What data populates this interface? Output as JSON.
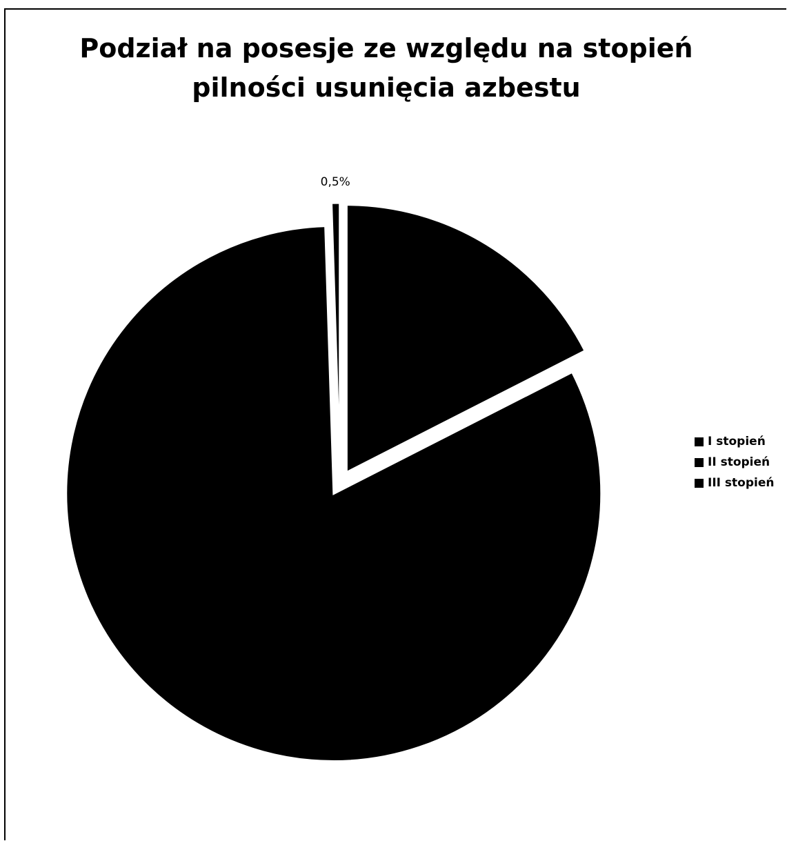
{
  "chart_data": {
    "type": "pie",
    "title": [
      "Podział na posesje ze względu na stopień",
      "pilności usunięcia azbestu"
    ],
    "categories": [
      "I stopień",
      "II stopień",
      "III stopień"
    ],
    "values": [
      17.5,
      82.0,
      0.5
    ],
    "data_labels": [
      "17,5%",
      "82,0%",
      "0,5%"
    ],
    "visible_data_labels": [
      false,
      false,
      true
    ],
    "exploded": true,
    "legend_position": "right",
    "colors": [
      "#000000",
      "#000000",
      "#000000"
    ]
  }
}
